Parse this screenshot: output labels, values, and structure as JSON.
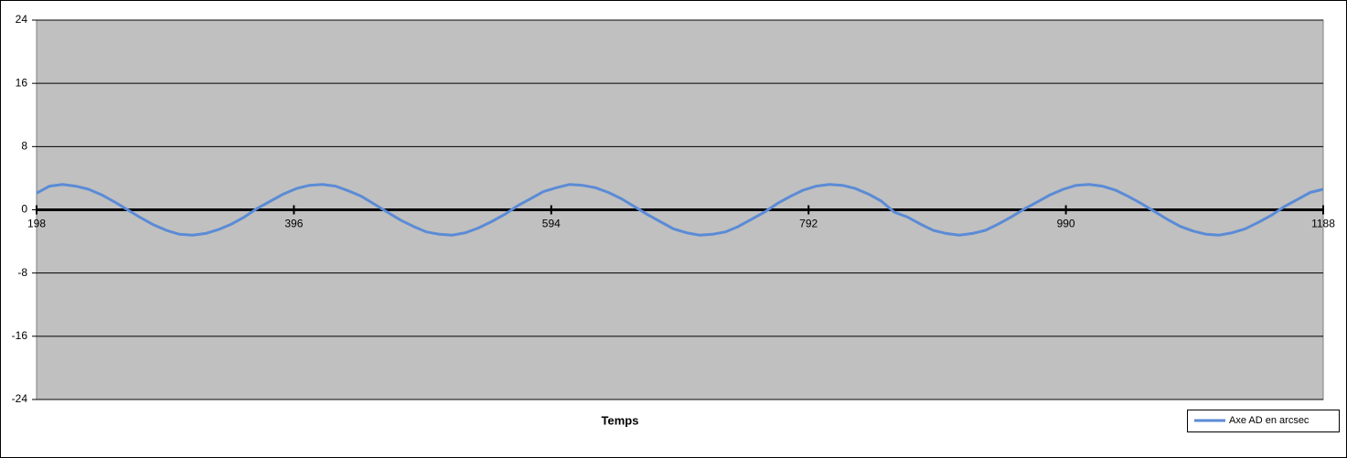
{
  "chart_data": {
    "type": "line",
    "x_label": "Temps",
    "x": [
      198,
      208,
      218,
      228,
      238,
      248,
      258,
      268,
      278,
      288,
      298,
      308,
      318,
      328,
      338,
      348,
      358,
      368,
      378,
      388,
      398,
      408,
      418,
      428,
      438,
      448,
      458,
      468,
      478,
      488,
      498,
      508,
      518,
      528,
      538,
      548,
      558,
      568,
      578,
      588,
      598,
      608,
      618,
      628,
      638,
      648,
      658,
      668,
      678,
      688,
      698,
      708,
      718,
      728,
      738,
      748,
      758,
      768,
      778,
      788,
      798,
      808,
      818,
      828,
      838,
      848,
      858,
      868,
      878,
      888,
      898,
      908,
      918,
      928,
      938,
      948,
      958,
      968,
      978,
      988,
      998,
      1008,
      1018,
      1028,
      1038,
      1048,
      1058,
      1068,
      1078,
      1088,
      1098,
      1108,
      1118,
      1128,
      1138,
      1148,
      1158,
      1168,
      1178,
      1188
    ],
    "series": [
      {
        "name": "Axe AD en arcsec",
        "color": "#5b8bd6",
        "values": [
          2.1,
          3.0,
          3.2,
          3.0,
          2.6,
          1.9,
          1.0,
          0.0,
          -1.0,
          -1.9,
          -2.6,
          -3.1,
          -3.2,
          -3.0,
          -2.5,
          -1.8,
          -0.9,
          0.2,
          1.1,
          2.0,
          2.7,
          3.1,
          3.2,
          3.0,
          2.4,
          1.7,
          0.7,
          -0.3,
          -1.3,
          -2.1,
          -2.8,
          -3.1,
          -3.2,
          -2.9,
          -2.3,
          -1.5,
          -0.6,
          0.5,
          1.4,
          2.3,
          2.8,
          3.2,
          3.1,
          2.8,
          2.2,
          1.4,
          0.4,
          -0.6,
          -1.5,
          -2.4,
          -2.9,
          -3.2,
          -3.1,
          -2.8,
          -2.1,
          -1.2,
          -0.3,
          0.8,
          1.7,
          2.5,
          3.0,
          3.2,
          3.1,
          2.7,
          2.0,
          1.1,
          -0.3,
          -0.9,
          -1.8,
          -2.6,
          -3.0,
          -3.2,
          -3.0,
          -2.6,
          -1.8,
          -0.9,
          0.1,
          1.0,
          1.9,
          2.6,
          3.1,
          3.2,
          3.0,
          2.5,
          1.7,
          0.8,
          -0.2,
          -1.2,
          -2.1,
          -2.7,
          -3.1,
          -3.2,
          -2.9,
          -2.4,
          -1.6,
          -0.7,
          0.4,
          1.3,
          2.2,
          2.6
        ]
      }
    ],
    "xlim": [
      198,
      1188
    ],
    "xticks": [
      198,
      396,
      594,
      792,
      990,
      1188
    ],
    "ylim": [
      -24,
      24
    ],
    "yticks": [
      -24,
      -16,
      -8,
      0,
      8,
      16,
      24
    ],
    "grid": true,
    "legend": "bottom-right"
  }
}
